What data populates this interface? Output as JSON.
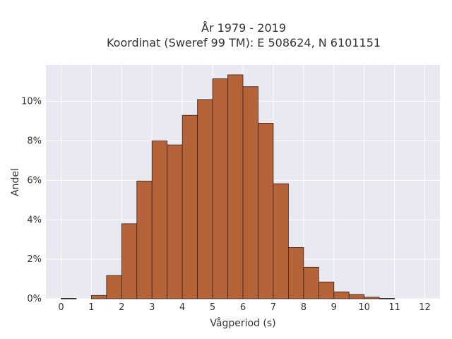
{
  "chart_data": {
    "type": "bar",
    "title_lines": [
      "År 1979 - 2019",
      "Koordinat (Sweref 99 TM): E 508624, N 6101151"
    ],
    "xlabel": "Vågperiod (s)",
    "ylabel": "Andel",
    "bin_width": 0.5,
    "x_ticks": [
      0,
      1,
      2,
      3,
      4,
      5,
      6,
      7,
      8,
      9,
      10,
      11,
      12
    ],
    "y_ticks": [
      {
        "value": 0,
        "label": "0%"
      },
      {
        "value": 2,
        "label": "2%"
      },
      {
        "value": 4,
        "label": "4%"
      },
      {
        "value": 6,
        "label": "6%"
      },
      {
        "value": 8,
        "label": "8%"
      },
      {
        "value": 10,
        "label": "10%"
      }
    ],
    "xlim": [
      -0.5,
      12.5
    ],
    "ylim": [
      0,
      11.85
    ],
    "bins": [
      {
        "start": 0.0,
        "value": 0.02
      },
      {
        "start": 0.5,
        "value": 0.0
      },
      {
        "start": 1.0,
        "value": 0.17
      },
      {
        "start": 1.5,
        "value": 1.18
      },
      {
        "start": 2.0,
        "value": 3.8
      },
      {
        "start": 2.5,
        "value": 5.97
      },
      {
        "start": 3.0,
        "value": 8.0
      },
      {
        "start": 3.5,
        "value": 7.8
      },
      {
        "start": 4.0,
        "value": 9.3
      },
      {
        "start": 4.5,
        "value": 10.1
      },
      {
        "start": 5.0,
        "value": 11.15
      },
      {
        "start": 5.5,
        "value": 11.35
      },
      {
        "start": 6.0,
        "value": 10.75
      },
      {
        "start": 6.5,
        "value": 8.9
      },
      {
        "start": 7.0,
        "value": 5.83
      },
      {
        "start": 7.5,
        "value": 2.6
      },
      {
        "start": 8.0,
        "value": 1.6
      },
      {
        "start": 8.5,
        "value": 0.85
      },
      {
        "start": 9.0,
        "value": 0.35
      },
      {
        "start": 9.5,
        "value": 0.22
      },
      {
        "start": 10.0,
        "value": 0.08
      },
      {
        "start": 10.5,
        "value": 0.02
      },
      {
        "start": 11.0,
        "value": 0.0
      },
      {
        "start": 11.5,
        "value": 0.0
      }
    ],
    "grid": true,
    "colors": {
      "bar_fill": "#b5643a",
      "bar_edge": "#3a2418",
      "plot_bg": "#e9e9f1",
      "grid": "#ffffff"
    }
  }
}
